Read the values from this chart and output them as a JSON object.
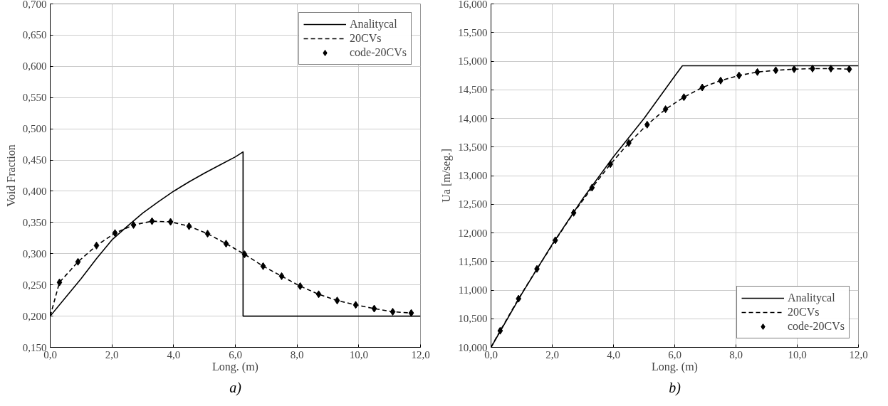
{
  "chart_data": [
    {
      "type": "line",
      "xlabel": "Long. (m)",
      "ylabel": "Void Fraction",
      "annotations": [
        "a)"
      ],
      "legend": "top right",
      "grid": true,
      "xlim": [
        0,
        12
      ],
      "xticks": [
        {
          "value": 0,
          "label": "0,0"
        },
        {
          "value": 2,
          "label": "2,0"
        },
        {
          "value": 4,
          "label": "4,0"
        },
        {
          "value": 6,
          "label": "6,0"
        },
        {
          "value": 8,
          "label": "8,0"
        },
        {
          "value": 10,
          "label": "10,0"
        },
        {
          "value": 12,
          "label": "12,0"
        }
      ],
      "ylim": [
        0.15,
        0.7
      ],
      "yticks": [
        {
          "value": 0.15,
          "label": "0,150"
        },
        {
          "value": 0.2,
          "label": "0,200"
        },
        {
          "value": 0.25,
          "label": "0,250"
        },
        {
          "value": 0.3,
          "label": "0,300"
        },
        {
          "value": 0.35,
          "label": "0,350"
        },
        {
          "value": 0.4,
          "label": "0,400"
        },
        {
          "value": 0.45,
          "label": "0,450"
        },
        {
          "value": 0.5,
          "label": "0,500"
        },
        {
          "value": 0.55,
          "label": "0,550"
        },
        {
          "value": 0.6,
          "label": "0,600"
        },
        {
          "value": 0.65,
          "label": "0,650"
        },
        {
          "value": 0.7,
          "label": "0,700"
        }
      ],
      "series": [
        {
          "name": "Analitycal",
          "line_style": "solid",
          "color": "#000000",
          "x": [
            0,
            0.5,
            1.0,
            1.5,
            2.0,
            2.5,
            3.0,
            3.5,
            4.0,
            4.5,
            5.0,
            5.5,
            6.0,
            6.25,
            6.25,
            12
          ],
          "values": [
            0.2,
            0.23,
            0.26,
            0.292,
            0.322,
            0.344,
            0.365,
            0.383,
            0.4,
            0.415,
            0.429,
            0.442,
            0.455,
            0.463,
            0.2,
            0.2
          ]
        },
        {
          "name": "20CVs",
          "line_style": "dashed",
          "color": "#000000",
          "x": [
            0,
            0.3,
            0.9,
            1.5,
            2.1,
            2.7,
            3.3,
            3.9,
            4.5,
            5.1,
            5.7,
            6.3,
            6.9,
            7.5,
            8.1,
            8.7,
            9.3,
            9.9,
            10.5,
            11.1,
            11.7
          ],
          "values": [
            0.2,
            0.254,
            0.287,
            0.313,
            0.333,
            0.346,
            0.352,
            0.351,
            0.344,
            0.332,
            0.316,
            0.299,
            0.28,
            0.264,
            0.248,
            0.235,
            0.225,
            0.218,
            0.212,
            0.207,
            0.205
          ]
        },
        {
          "name": "code-20CVs",
          "type": "scatter",
          "marker": "diamond",
          "color": "#000000",
          "x": [
            0.3,
            0.9,
            1.5,
            2.1,
            2.7,
            3.3,
            3.9,
            4.5,
            5.1,
            5.7,
            6.3,
            6.9,
            7.5,
            8.1,
            8.7,
            9.3,
            9.9,
            10.5,
            11.1,
            11.7
          ],
          "values": [
            0.254,
            0.287,
            0.313,
            0.333,
            0.346,
            0.352,
            0.351,
            0.344,
            0.332,
            0.316,
            0.299,
            0.28,
            0.264,
            0.248,
            0.235,
            0.225,
            0.218,
            0.212,
            0.207,
            0.205
          ]
        }
      ]
    },
    {
      "type": "line",
      "xlabel": "Long. (m)",
      "ylabel": "Ua [m/seg.]",
      "annotations": [
        "b)"
      ],
      "legend": "bottom right",
      "grid": true,
      "xlim": [
        0,
        12
      ],
      "xticks": [
        {
          "value": 0,
          "label": "0,0"
        },
        {
          "value": 2,
          "label": "2,0"
        },
        {
          "value": 4,
          "label": "4,0"
        },
        {
          "value": 6,
          "label": "6,0"
        },
        {
          "value": 8,
          "label": "8,0"
        },
        {
          "value": 10,
          "label": "10,0"
        },
        {
          "value": 12,
          "label": "12,0"
        }
      ],
      "ylim": [
        10,
        16
      ],
      "yticks": [
        {
          "value": 10,
          "label": "10,000"
        },
        {
          "value": 10.5,
          "label": "10,500"
        },
        {
          "value": 11,
          "label": "11,000"
        },
        {
          "value": 11.5,
          "label": "11,500"
        },
        {
          "value": 12,
          "label": "12,000"
        },
        {
          "value": 12.5,
          "label": "12,500"
        },
        {
          "value": 13,
          "label": "13,000"
        },
        {
          "value": 13.5,
          "label": "13,500"
        },
        {
          "value": 14,
          "label": "14,000"
        },
        {
          "value": 14.5,
          "label": "14,500"
        },
        {
          "value": 15,
          "label": "15,000"
        },
        {
          "value": 15.5,
          "label": "15,500"
        },
        {
          "value": 16,
          "label": "16,000"
        }
      ],
      "series": [
        {
          "name": "Analitycal",
          "line_style": "solid",
          "color": "#000000",
          "x": [
            0,
            1,
            2,
            3,
            4,
            5,
            6,
            6.25,
            12
          ],
          "values": [
            10,
            10.93,
            11.8,
            12.6,
            13.33,
            14,
            14.74,
            14.92,
            14.92
          ]
        },
        {
          "name": "20CVs",
          "line_style": "dashed",
          "color": "#000000",
          "x": [
            0,
            0.3,
            0.9,
            1.5,
            2.1,
            2.7,
            3.3,
            3.9,
            4.5,
            5.1,
            5.7,
            6.3,
            6.9,
            7.5,
            8.1,
            8.7,
            9.3,
            9.9,
            10.5,
            11.1,
            11.7
          ],
          "values": [
            10,
            10.29,
            10.85,
            11.37,
            11.87,
            12.35,
            12.79,
            13.2,
            13.57,
            13.89,
            14.16,
            14.37,
            14.54,
            14.66,
            14.75,
            14.81,
            14.84,
            14.86,
            14.87,
            14.87,
            14.86
          ]
        },
        {
          "name": "code-20CVs",
          "type": "scatter",
          "marker": "diamond",
          "color": "#000000",
          "x": [
            0.3,
            0.9,
            1.5,
            2.1,
            2.7,
            3.3,
            3.9,
            4.5,
            5.1,
            5.7,
            6.3,
            6.9,
            7.5,
            8.1,
            8.7,
            9.3,
            9.9,
            10.5,
            11.1,
            11.7
          ],
          "values": [
            10.29,
            10.85,
            11.37,
            11.87,
            12.35,
            12.79,
            13.2,
            13.57,
            13.89,
            14.16,
            14.37,
            14.54,
            14.66,
            14.75,
            14.81,
            14.84,
            14.86,
            14.87,
            14.87,
            14.86
          ]
        }
      ]
    }
  ]
}
